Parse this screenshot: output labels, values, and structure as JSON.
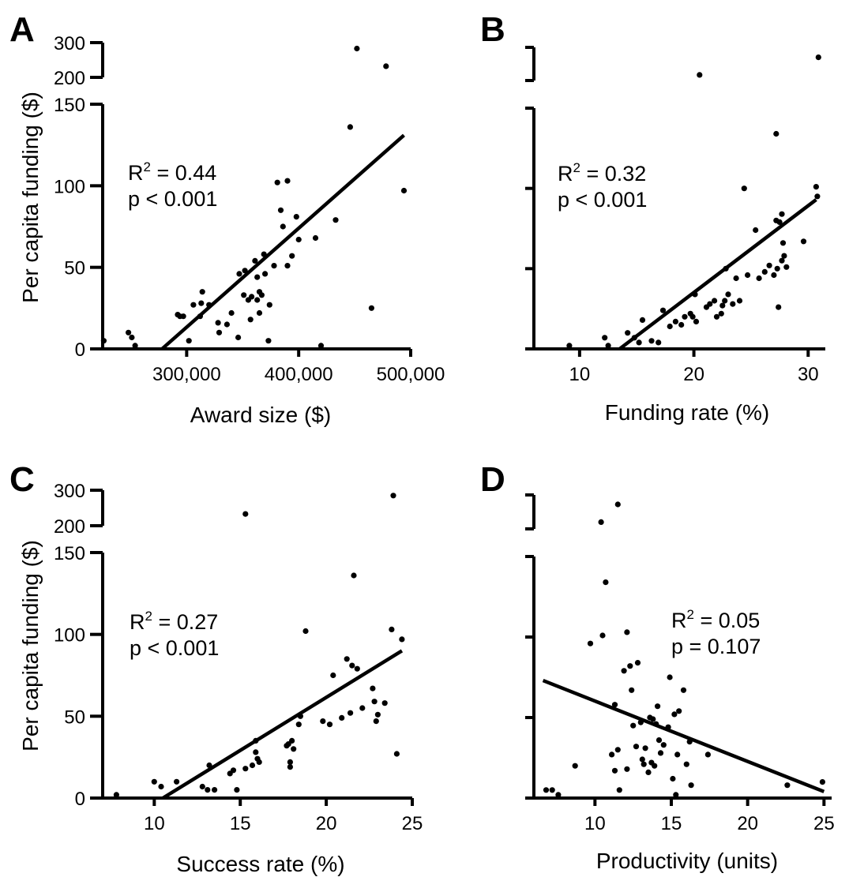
{
  "chart_data": [
    {
      "panel": "A",
      "type": "scatter",
      "xlabel": "Award size ($)",
      "ylabel": "Per capita funding ($)",
      "xlim": [
        225000,
        500000
      ],
      "x_ticks": [
        300000,
        400000,
        500000
      ],
      "x_tick_labels": [
        "300,000",
        "400,000",
        "500,000"
      ],
      "y_ticks_lower": [
        0,
        50,
        100,
        150
      ],
      "y_tick_labels_lower": [
        "0",
        "50",
        "100",
        "150"
      ],
      "y_ticks_upper": [
        200,
        300
      ],
      "y_tick_labels_upper": [
        "200",
        "300"
      ],
      "ylim_lower": [
        0,
        150
      ],
      "ylim_upper": [
        200,
        300
      ],
      "show_y_tick_labels": true,
      "stat": {
        "r2_prefix": "R",
        "r2_sup": "2",
        "r2_value": " = 0.44",
        "p_text": "p < 0.001"
      },
      "fit_line": {
        "x": [
          278000,
          494000
        ],
        "y": [
          0,
          131
        ]
      },
      "points": [
        [
          226000,
          5
        ],
        [
          248000,
          10
        ],
        [
          251000,
          7
        ],
        [
          254000,
          2
        ],
        [
          292000,
          21
        ],
        [
          294000,
          20
        ],
        [
          297000,
          20
        ],
        [
          302000,
          5
        ],
        [
          306000,
          27
        ],
        [
          314000,
          35
        ],
        [
          313000,
          28
        ],
        [
          312000,
          20
        ],
        [
          320000,
          27
        ],
        [
          328000,
          16
        ],
        [
          329000,
          10
        ],
        [
          336000,
          15
        ],
        [
          340000,
          22
        ],
        [
          346000,
          7
        ],
        [
          347000,
          46
        ],
        [
          352000,
          48
        ],
        [
          351000,
          33
        ],
        [
          355000,
          30
        ],
        [
          357000,
          18
        ],
        [
          358000,
          32
        ],
        [
          361000,
          54
        ],
        [
          363000,
          44
        ],
        [
          363000,
          30
        ],
        [
          365000,
          22
        ],
        [
          365000,
          35
        ],
        [
          367000,
          33
        ],
        [
          369000,
          58
        ],
        [
          370000,
          46
        ],
        [
          373000,
          5
        ],
        [
          374000,
          27
        ],
        [
          378000,
          51
        ],
        [
          381000,
          102
        ],
        [
          384000,
          85
        ],
        [
          386000,
          75
        ],
        [
          390000,
          103
        ],
        [
          390000,
          51
        ],
        [
          394000,
          57
        ],
        [
          398000,
          81
        ],
        [
          400000,
          67
        ],
        [
          415000,
          68
        ],
        [
          420000,
          2
        ],
        [
          433000,
          79
        ],
        [
          446000,
          136
        ],
        [
          452000,
          283
        ],
        [
          465000,
          25
        ],
        [
          478000,
          232
        ],
        [
          494000,
          97
        ]
      ]
    },
    {
      "panel": "B",
      "type": "scatter",
      "xlabel": "Funding rate (%)",
      "ylabel": "",
      "xlim": [
        6,
        31.5
      ],
      "x_ticks": [
        10,
        20,
        30
      ],
      "x_tick_labels": [
        "10",
        "20",
        "30"
      ],
      "y_ticks_lower": [
        0,
        50,
        100,
        150
      ],
      "y_tick_labels_lower": [
        "",
        "",
        "",
        ""
      ],
      "y_ticks_upper": [
        200,
        300
      ],
      "y_tick_labels_upper": [
        "",
        ""
      ],
      "ylim_lower": [
        0,
        150
      ],
      "ylim_upper": [
        200,
        300
      ],
      "show_y_tick_labels": false,
      "stat": {
        "r2_prefix": "R",
        "r2_sup": "2",
        "r2_value": " = 0.32",
        "p_text": "p < 0.001"
      },
      "fit_line": {
        "x": [
          13.5,
          30.7
        ],
        "y": [
          0,
          93
        ]
      },
      "points": [
        [
          9.1,
          2
        ],
        [
          12.2,
          7
        ],
        [
          12.5,
          2
        ],
        [
          14.2,
          10
        ],
        [
          14.8,
          7
        ],
        [
          15.2,
          4
        ],
        [
          15.5,
          18
        ],
        [
          16.3,
          5
        ],
        [
          16.9,
          4
        ],
        [
          17.3,
          24
        ],
        [
          17.9,
          14
        ],
        [
          18.4,
          17
        ],
        [
          18.9,
          15
        ],
        [
          19.2,
          20
        ],
        [
          19.7,
          22
        ],
        [
          19.9,
          20
        ],
        [
          20.2,
          17
        ],
        [
          20.1,
          34
        ],
        [
          20.5,
          217
        ],
        [
          21.1,
          26
        ],
        [
          21.4,
          28
        ],
        [
          21.8,
          30
        ],
        [
          22.0,
          20
        ],
        [
          22.4,
          22
        ],
        [
          22.5,
          27
        ],
        [
          22.7,
          30
        ],
        [
          22.8,
          50
        ],
        [
          23.0,
          34
        ],
        [
          23.4,
          28
        ],
        [
          23.7,
          44
        ],
        [
          24.0,
          30
        ],
        [
          24.4,
          100
        ],
        [
          24.7,
          46
        ],
        [
          25.4,
          74
        ],
        [
          25.7,
          44
        ],
        [
          26.2,
          48
        ],
        [
          26.6,
          52
        ],
        [
          27.0,
          46
        ],
        [
          27.2,
          80
        ],
        [
          27.2,
          134
        ],
        [
          27.3,
          50
        ],
        [
          27.4,
          26
        ],
        [
          27.5,
          79
        ],
        [
          27.7,
          55
        ],
        [
          27.7,
          84
        ],
        [
          27.9,
          58
        ],
        [
          27.8,
          66
        ],
        [
          28.1,
          51
        ],
        [
          29.6,
          67
        ],
        [
          30.7,
          101
        ],
        [
          30.8,
          95
        ],
        [
          30.9,
          270
        ]
      ]
    },
    {
      "panel": "C",
      "type": "scatter",
      "xlabel": "Success rate (%)",
      "ylabel": "Per capita funding ($)",
      "xlim": [
        7,
        25
      ],
      "x_ticks": [
        10,
        15,
        20,
        25
      ],
      "x_tick_labels": [
        "10",
        "15",
        "20",
        "25"
      ],
      "y_ticks_lower": [
        0,
        50,
        100,
        150
      ],
      "y_tick_labels_lower": [
        "0",
        "50",
        "100",
        "150"
      ],
      "y_ticks_upper": [
        200,
        300
      ],
      "y_tick_labels_upper": [
        "200",
        "300"
      ],
      "ylim_lower": [
        0,
        150
      ],
      "ylim_upper": [
        200,
        300
      ],
      "show_y_tick_labels": true,
      "stat": {
        "r2_prefix": "R",
        "r2_sup": "2",
        "r2_value": " = 0.27",
        "p_text": "p < 0.001"
      },
      "fit_line": {
        "x": [
          10.5,
          24.4
        ],
        "y": [
          0,
          90
        ]
      },
      "points": [
        [
          7.8,
          2
        ],
        [
          10.0,
          10
        ],
        [
          10.4,
          7
        ],
        [
          11.3,
          10
        ],
        [
          12.8,
          7
        ],
        [
          13.1,
          5
        ],
        [
          13.2,
          20
        ],
        [
          13.5,
          5
        ],
        [
          14.4,
          15
        ],
        [
          14.6,
          17
        ],
        [
          14.8,
          5
        ],
        [
          15.3,
          233
        ],
        [
          15.3,
          18
        ],
        [
          15.7,
          20
        ],
        [
          15.9,
          35
        ],
        [
          15.9,
          28
        ],
        [
          16.0,
          24
        ],
        [
          16.1,
          22
        ],
        [
          17.7,
          32
        ],
        [
          17.8,
          33
        ],
        [
          17.9,
          22
        ],
        [
          17.9,
          19
        ],
        [
          18.0,
          35
        ],
        [
          18.1,
          30
        ],
        [
          18.4,
          45
        ],
        [
          18.5,
          50
        ],
        [
          18.8,
          102
        ],
        [
          19.8,
          47
        ],
        [
          20.2,
          45
        ],
        [
          20.4,
          75
        ],
        [
          20.9,
          49
        ],
        [
          21.2,
          85
        ],
        [
          21.4,
          52
        ],
        [
          21.5,
          81
        ],
        [
          21.6,
          136
        ],
        [
          21.8,
          79
        ],
        [
          22.1,
          55
        ],
        [
          22.7,
          67
        ],
        [
          22.8,
          59
        ],
        [
          22.9,
          47
        ],
        [
          23.0,
          51
        ],
        [
          23.4,
          58
        ],
        [
          23.8,
          103
        ],
        [
          23.9,
          285
        ],
        [
          24.1,
          27
        ],
        [
          24.4,
          97
        ]
      ]
    },
    {
      "panel": "D",
      "type": "scatter",
      "xlabel": "Productivity (units)",
      "ylabel": "",
      "xlim": [
        6,
        25.5
      ],
      "x_ticks": [
        10,
        15,
        20,
        25
      ],
      "x_tick_labels": [
        "10",
        "15",
        "20",
        "25"
      ],
      "y_ticks_lower": [
        0,
        50,
        100,
        150
      ],
      "y_tick_labels_lower": [
        "",
        "",
        "",
        ""
      ],
      "y_ticks_upper": [
        200,
        300
      ],
      "y_tick_labels_upper": [
        "",
        ""
      ],
      "ylim_lower": [
        0,
        150
      ],
      "ylim_upper": [
        200,
        300
      ],
      "show_y_tick_labels": false,
      "stat": {
        "r2_prefix": "R",
        "r2_sup": "2",
        "r2_value": " = 0.05",
        "p_text": "p = 0.107"
      },
      "fit_line": {
        "x": [
          6.6,
          25
        ],
        "y": [
          73,
          4
        ]
      },
      "points": [
        [
          6.8,
          5
        ],
        [
          7.2,
          5
        ],
        [
          7.6,
          2
        ],
        [
          8.7,
          20
        ],
        [
          9.7,
          96
        ],
        [
          10.5,
          101
        ],
        [
          10.4,
          220
        ],
        [
          10.7,
          134
        ],
        [
          11.1,
          27
        ],
        [
          11.3,
          58
        ],
        [
          11.3,
          17
        ],
        [
          11.5,
          272
        ],
        [
          11.5,
          30
        ],
        [
          11.6,
          5
        ],
        [
          11.9,
          79
        ],
        [
          12.1,
          103
        ],
        [
          12.1,
          18
        ],
        [
          12.3,
          82
        ],
        [
          12.4,
          67
        ],
        [
          12.5,
          45
        ],
        [
          12.7,
          32
        ],
        [
          12.8,
          84
        ],
        [
          13.0,
          47
        ],
        [
          13.1,
          24
        ],
        [
          13.2,
          21
        ],
        [
          13.3,
          31
        ],
        [
          13.5,
          16
        ],
        [
          13.6,
          50
        ],
        [
          13.7,
          22
        ],
        [
          13.8,
          49
        ],
        [
          13.9,
          20
        ],
        [
          14.0,
          46
        ],
        [
          14.1,
          57
        ],
        [
          14.2,
          36
        ],
        [
          14.3,
          28
        ],
        [
          14.5,
          33
        ],
        [
          14.8,
          44
        ],
        [
          14.9,
          75
        ],
        [
          15.1,
          12
        ],
        [
          15.2,
          52
        ],
        [
          15.3,
          2
        ],
        [
          15.4,
          27
        ],
        [
          15.5,
          54
        ],
        [
          15.8,
          67
        ],
        [
          16.0,
          21
        ],
        [
          16.2,
          35
        ],
        [
          16.3,
          8
        ],
        [
          17.4,
          27
        ],
        [
          22.6,
          8
        ],
        [
          24.9,
          10
        ]
      ]
    }
  ]
}
